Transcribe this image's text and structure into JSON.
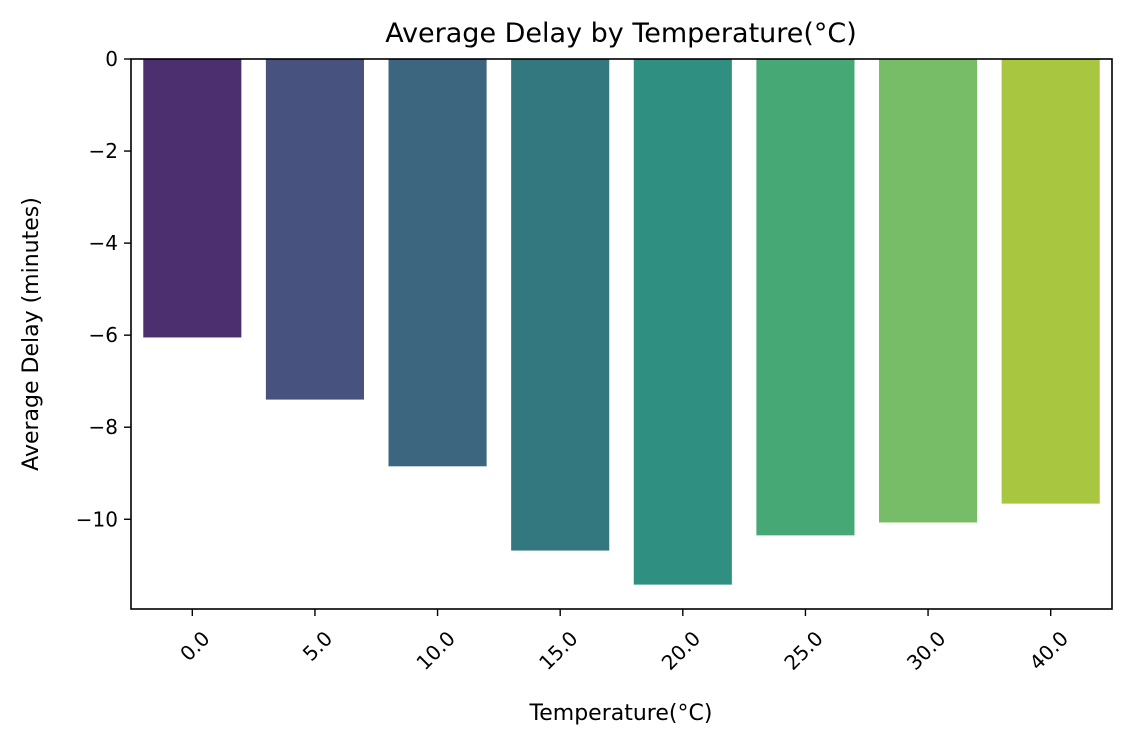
{
  "chart_data": {
    "type": "bar",
    "title": "Average Delay by Temperature(°C)",
    "xlabel": "Temperature(°C)",
    "ylabel": "Average Delay (minutes)",
    "categories": [
      "0.0",
      "5.0",
      "10.0",
      "15.0",
      "20.0",
      "25.0",
      "30.0",
      "40.0"
    ],
    "values": [
      -6.05,
      -7.4,
      -8.85,
      -10.68,
      -11.42,
      -10.35,
      -10.07,
      -9.66
    ],
    "colors": [
      "#4b2f6e",
      "#47527e",
      "#3c6680",
      "#34787f",
      "#2f8f80",
      "#46a874",
      "#77bd68",
      "#a8c640"
    ],
    "ylim": [
      -11.95,
      0
    ],
    "yticks": [
      0,
      -2,
      -4,
      -6,
      -8,
      -10
    ],
    "ytick_labels": [
      "0",
      "−2",
      "−4",
      "−6",
      "−8",
      "−10"
    ],
    "grid": false,
    "legend": "none"
  }
}
